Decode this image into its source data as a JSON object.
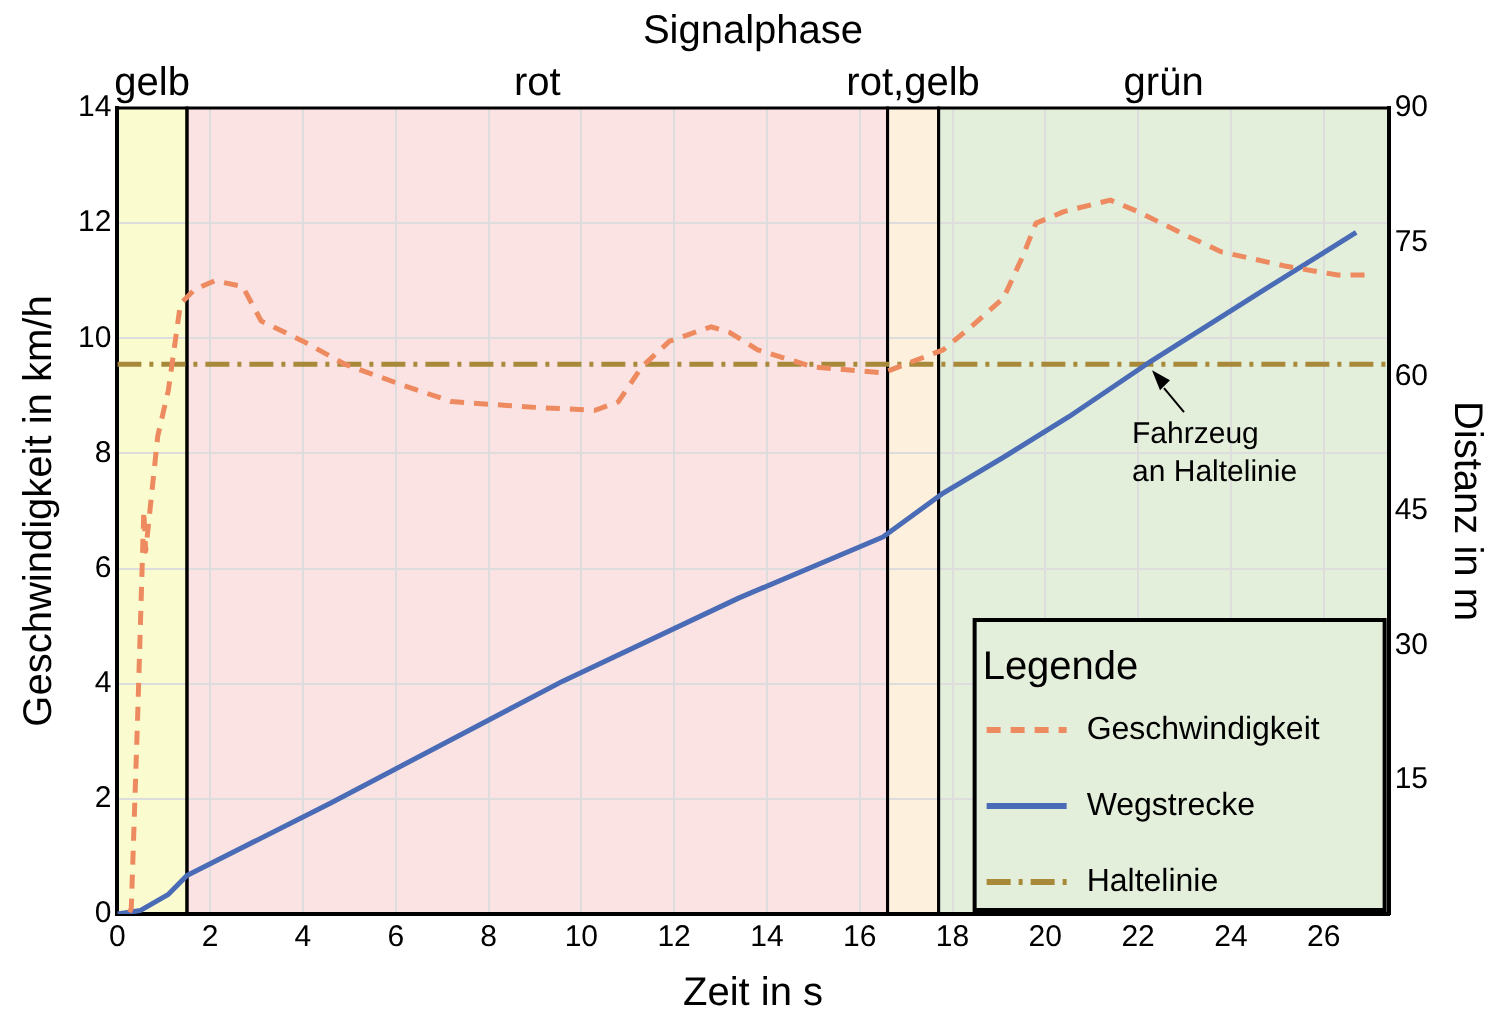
{
  "chart_data": {
    "type": "line",
    "title": "Signalphase",
    "xlabel": "Zeit in s",
    "ylabel": "Geschwindigkeit in km/h",
    "y2label": "Distanz in m",
    "xlim": [
      0,
      27.4
    ],
    "xticks": [
      0,
      2,
      4,
      6,
      8,
      10,
      12,
      14,
      16,
      18,
      20,
      22,
      24,
      26
    ],
    "ylim": [
      0,
      14
    ],
    "yticks": [
      0,
      2,
      4,
      6,
      8,
      10,
      12,
      14
    ],
    "y2lim": [
      0,
      90
    ],
    "y2ticks": [
      15,
      30,
      45,
      60,
      75,
      90
    ],
    "grid": true,
    "legend": "bottom right",
    "legend_title": "Legende",
    "marker": "none",
    "series": [
      {
        "name": "Geschwindigkeit",
        "color": "#ee8a5f",
        "line_style": "dashed",
        "x": [
          0.26,
          0.3,
          0.44,
          0.57,
          0.61,
          0.87,
          1.1,
          1.36,
          1.67,
          2.1,
          2.7,
          3.1,
          4.0,
          4.9,
          6.1,
          7.2,
          9.0,
          10.3,
          10.8,
          11.3,
          11.9,
          12.8,
          13.2,
          13.8,
          15.0,
          16.5,
          17.8,
          18.4,
          19.1,
          19.5,
          19.8,
          20.4,
          21.4,
          22.0,
          23.0,
          23.8,
          25.2,
          26.3,
          27.0
        ],
        "values": [
          0.03,
          0.1,
          3.5,
          7.0,
          6.3,
          8.3,
          9.1,
          10.6,
          10.85,
          11.0,
          10.9,
          10.3,
          9.95,
          9.55,
          9.2,
          8.9,
          8.8,
          8.75,
          8.9,
          9.5,
          9.95,
          10.2,
          10.1,
          9.8,
          9.5,
          9.4,
          9.8,
          10.2,
          10.7,
          11.4,
          12.0,
          12.2,
          12.4,
          12.2,
          11.8,
          11.5,
          11.25,
          11.1,
          11.1
        ]
      },
      {
        "name": "Wegstrecke",
        "color": "#4a6bb5",
        "line_style": "solid",
        "axis": "y2",
        "x": [
          0,
          0.5,
          1.1,
          1.5,
          4.6,
          9.6,
          13.4,
          16.5,
          17.8,
          19.1,
          20.5,
          22.3,
          24.5,
          26.7
        ],
        "values": [
          0,
          0.4,
          2.2,
          4.3,
          12.4,
          26,
          35.3,
          42.1,
          47,
          51,
          55.5,
          61.8,
          69,
          76.1
        ]
      },
      {
        "name": "Haltelinie",
        "color": "#a8893a",
        "line_style": "dashdot",
        "x": [
          0,
          27.4
        ],
        "values": [
          9.55,
          9.55
        ]
      }
    ],
    "bands": [
      {
        "axis": "x",
        "from": 0,
        "to": 1.5,
        "label": "gelb",
        "color": "#fbfbd0"
      },
      {
        "axis": "x",
        "from": 1.5,
        "to": 16.6,
        "label": "rot",
        "color": "#fbe3e3"
      },
      {
        "axis": "x",
        "from": 16.6,
        "to": 17.7,
        "label": "rot,gelb",
        "color": "#fdf0dc"
      },
      {
        "axis": "x",
        "from": 17.7,
        "to": 27.4,
        "label": "grün",
        "color": "#e3eedb"
      }
    ],
    "annotations": [
      {
        "text": "Fahrzeug\nan Haltelinie",
        "x": 22.3,
        "y": 9.55
      }
    ]
  }
}
